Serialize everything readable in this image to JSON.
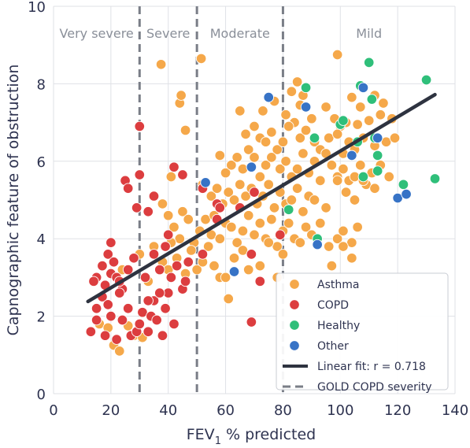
{
  "chart_data": {
    "type": "scatter",
    "xlabel": "FEV",
    "xlabel_sub": "1",
    "xlabel_rest": " % predicted",
    "ylabel": "Capnographic feature of obstruction",
    "xlim": [
      0,
      140
    ],
    "ylim": [
      0,
      10
    ],
    "xticks": [
      "0",
      "20",
      "40",
      "60",
      "80",
      "100",
      "120",
      "140"
    ],
    "yticks": [
      "0",
      "2",
      "4",
      "6",
      "8",
      "10"
    ],
    "grid": true,
    "legend_position": "bottom-right",
    "regions": [
      {
        "label": "Very severe",
        "x": 15
      },
      {
        "label": "Severe",
        "x": 40
      },
      {
        "label": "Moderate",
        "x": 65
      },
      {
        "label": "Mild",
        "x": 110
      }
    ],
    "severity_lines": [
      30,
      50,
      80
    ],
    "fit": {
      "label": "Linear fit: r = 0.718",
      "x": [
        12,
        133
      ],
      "y": [
        2.38,
        7.72
      ],
      "color": "#2e3340"
    },
    "severity_label": "GOLD COPD severity",
    "series": [
      {
        "name": "Asthma",
        "color": "#f5a84a",
        "points": [
          [
            37.5,
            8.5
          ],
          [
            51.5,
            8.65
          ],
          [
            99,
            8.75
          ],
          [
            44,
            7.5
          ],
          [
            44.5,
            7.7
          ],
          [
            46,
            6.8
          ],
          [
            85,
            8.05
          ],
          [
            86,
            7.45
          ],
          [
            83,
            7.8
          ],
          [
            87,
            7.7
          ],
          [
            104,
            7.65
          ],
          [
            107,
            7.4
          ],
          [
            112,
            7.7
          ],
          [
            115,
            7.5
          ],
          [
            65,
            7.3
          ],
          [
            73,
            7.3
          ],
          [
            77,
            7.55
          ],
          [
            81,
            7.2
          ],
          [
            84,
            7.0
          ],
          [
            90,
            7.1
          ],
          [
            95,
            7.4
          ],
          [
            98,
            7.1
          ],
          [
            100,
            6.9
          ],
          [
            102,
            7.0
          ],
          [
            106,
            6.95
          ],
          [
            110,
            7.05
          ],
          [
            114,
            7.2
          ],
          [
            118,
            7.1
          ],
          [
            67,
            6.7
          ],
          [
            70,
            6.9
          ],
          [
            72,
            6.6
          ],
          [
            74,
            6.5
          ],
          [
            76,
            6.75
          ],
          [
            78,
            6.3
          ],
          [
            80,
            6.5
          ],
          [
            82,
            6.9
          ],
          [
            86,
            6.6
          ],
          [
            88,
            6.8
          ],
          [
            91,
            6.5
          ],
          [
            93,
            6.3
          ],
          [
            96,
            6.6
          ],
          [
            99,
            6.7
          ],
          [
            101,
            6.2
          ],
          [
            103,
            6.5
          ],
          [
            105,
            6.3
          ],
          [
            108,
            6.6
          ],
          [
            112,
            6.4
          ],
          [
            116,
            6.5
          ],
          [
            119,
            6.6
          ],
          [
            58,
            6.15
          ],
          [
            60,
            5.7
          ],
          [
            62,
            5.9
          ],
          [
            64,
            6.1
          ],
          [
            66,
            5.8
          ],
          [
            68,
            6.3
          ],
          [
            70,
            6.1
          ],
          [
            72,
            5.6
          ],
          [
            74,
            5.9
          ],
          [
            76,
            6.1
          ],
          [
            79,
            5.8
          ],
          [
            81,
            6.0
          ],
          [
            83,
            5.6
          ],
          [
            85,
            5.8
          ],
          [
            87,
            6.2
          ],
          [
            89,
            5.7
          ],
          [
            91,
            6.0
          ],
          [
            93,
            5.5
          ],
          [
            95,
            6.2
          ],
          [
            97,
            5.9
          ],
          [
            99,
            5.6
          ],
          [
            101,
            5.8
          ],
          [
            103,
            5.5
          ],
          [
            105,
            5.6
          ],
          [
            107,
            5.9
          ],
          [
            109,
            5.4
          ],
          [
            111,
            5.7
          ],
          [
            114,
            5.9
          ],
          [
            117,
            5.6
          ],
          [
            52,
            5.4
          ],
          [
            55,
            5.1
          ],
          [
            57,
            5.3
          ],
          [
            59,
            4.9
          ],
          [
            61,
            5.2
          ],
          [
            63,
            5.0
          ],
          [
            65,
            5.4
          ],
          [
            67,
            5.1
          ],
          [
            69,
            5.3
          ],
          [
            71,
            4.9
          ],
          [
            73,
            5.1
          ],
          [
            75,
            5.4
          ],
          [
            77,
            4.8
          ],
          [
            79,
            5.2
          ],
          [
            81,
            4.9
          ],
          [
            83,
            5.0
          ],
          [
            85,
            5.3
          ],
          [
            87,
            4.7
          ],
          [
            89,
            5.1
          ],
          [
            91,
            5.0
          ],
          [
            95,
            4.8
          ],
          [
            99,
            5.5
          ],
          [
            102,
            5.2
          ],
          [
            105,
            5.0
          ],
          [
            108,
            5.5
          ],
          [
            112,
            5.3
          ],
          [
            38,
            4.9
          ],
          [
            40,
            4.6
          ],
          [
            41,
            5.6
          ],
          [
            42,
            4.3
          ],
          [
            44,
            4.0
          ],
          [
            45,
            4.7
          ],
          [
            47,
            4.5
          ],
          [
            49,
            3.9
          ],
          [
            51,
            4.2
          ],
          [
            53,
            4.5
          ],
          [
            55,
            4.1
          ],
          [
            56,
            4.6
          ],
          [
            58,
            4.0
          ],
          [
            60,
            4.4
          ],
          [
            62,
            4.3
          ],
          [
            64,
            3.9
          ],
          [
            66,
            4.2
          ],
          [
            68,
            4.6
          ],
          [
            70,
            4.1
          ],
          [
            72,
            4.4
          ],
          [
            74,
            4.0
          ],
          [
            76,
            4.5
          ],
          [
            78,
            3.8
          ],
          [
            80,
            4.2
          ],
          [
            82,
            4.4
          ],
          [
            84,
            4.0
          ],
          [
            86,
            3.9
          ],
          [
            88,
            4.3
          ],
          [
            90,
            4.1
          ],
          [
            93,
            4.4
          ],
          [
            96,
            3.8
          ],
          [
            99,
            4.0
          ],
          [
            101,
            4.2
          ],
          [
            104,
            3.9
          ],
          [
            106,
            4.3
          ],
          [
            30,
            3.6
          ],
          [
            33,
            2.9
          ],
          [
            35,
            3.8
          ],
          [
            38,
            3.4
          ],
          [
            40,
            3.2
          ],
          [
            41,
            3.9
          ],
          [
            43,
            3.5
          ],
          [
            46,
            3.1
          ],
          [
            48,
            3.7
          ],
          [
            50,
            3.2
          ],
          [
            52,
            3.4
          ],
          [
            54,
            3.8
          ],
          [
            56,
            3.3
          ],
          [
            58,
            3.0
          ],
          [
            60,
            3.0
          ],
          [
            61,
            2.45
          ],
          [
            63,
            3.5
          ],
          [
            66,
            3.7
          ],
          [
            68,
            3.2
          ],
          [
            72,
            3.3
          ],
          [
            75,
            3.9
          ],
          [
            78,
            3.0
          ],
          [
            80,
            3.6
          ],
          [
            97,
            3.3
          ],
          [
            101,
            3.8
          ],
          [
            104,
            3.5
          ],
          [
            24,
            3.2
          ],
          [
            16,
            1.8
          ],
          [
            19,
            1.7
          ],
          [
            21,
            1.25
          ],
          [
            23,
            1.1
          ],
          [
            26,
            1.75
          ],
          [
            28,
            1.5
          ],
          [
            31,
            1.45
          ]
        ]
      },
      {
        "name": "COPD",
        "color": "#dc3d3f",
        "points": [
          [
            30,
            6.9
          ],
          [
            25,
            5.5
          ],
          [
            26,
            5.3
          ],
          [
            30,
            5.65
          ],
          [
            29,
            4.8
          ],
          [
            33,
            4.7
          ],
          [
            35,
            5.1
          ],
          [
            42,
            5.85
          ],
          [
            45,
            5.65
          ],
          [
            52,
            5.3
          ],
          [
            57,
            4.9
          ],
          [
            58,
            4.8
          ],
          [
            65,
            4.8
          ],
          [
            70,
            5.2
          ],
          [
            69,
            3.6
          ],
          [
            79,
            4.1
          ],
          [
            72,
            2.9
          ],
          [
            69,
            1.85
          ],
          [
            57,
            4.5
          ],
          [
            52,
            3.6
          ],
          [
            20,
            3.9
          ],
          [
            19,
            3.6
          ],
          [
            17,
            3.3
          ],
          [
            15,
            3.0
          ],
          [
            14,
            2.9
          ],
          [
            18,
            2.8
          ],
          [
            20,
            3.1
          ],
          [
            21,
            3.4
          ],
          [
            22,
            3.0
          ],
          [
            24,
            2.7
          ],
          [
            26,
            3.2
          ],
          [
            28,
            3.5
          ],
          [
            23,
            2.6
          ],
          [
            17,
            2.5
          ],
          [
            15,
            2.2
          ],
          [
            19,
            2.3
          ],
          [
            13,
            1.6
          ],
          [
            15,
            1.9
          ],
          [
            18,
            1.5
          ],
          [
            20,
            2.0
          ],
          [
            22,
            1.4
          ],
          [
            24,
            1.9
          ],
          [
            26,
            2.2
          ],
          [
            27,
            1.5
          ],
          [
            29,
            1.6
          ],
          [
            30,
            1.8
          ],
          [
            31,
            2.1
          ],
          [
            33,
            1.6
          ],
          [
            34,
            2.0
          ],
          [
            35,
            2.4
          ],
          [
            36,
            1.9
          ],
          [
            38,
            1.5
          ],
          [
            39,
            2.2
          ],
          [
            40,
            2.6
          ],
          [
            42,
            1.8
          ],
          [
            33,
            2.4
          ],
          [
            37,
            2.6
          ],
          [
            41,
            3.0
          ],
          [
            45,
            2.7
          ],
          [
            46,
            2.9
          ],
          [
            32,
            3.0
          ],
          [
            35,
            3.6
          ],
          [
            37,
            3.2
          ],
          [
            39,
            3.8
          ],
          [
            43,
            3.3
          ],
          [
            47,
            3.4
          ],
          [
            40,
            4.1
          ],
          [
            23,
            2.9
          ]
        ]
      },
      {
        "name": "Healthy",
        "color": "#2fbf7a",
        "points": [
          [
            110,
            8.55
          ],
          [
            130,
            8.1
          ],
          [
            88,
            7.9
          ],
          [
            107,
            7.95
          ],
          [
            111,
            7.6
          ],
          [
            100,
            6.95
          ],
          [
            101,
            7.05
          ],
          [
            106,
            6.5
          ],
          [
            112,
            6.6
          ],
          [
            113,
            6.15
          ],
          [
            113,
            5.75
          ],
          [
            108,
            5.6
          ],
          [
            133,
            5.55
          ],
          [
            122,
            5.4
          ],
          [
            91,
            6.6
          ],
          [
            82,
            4.75
          ],
          [
            92,
            4.0
          ]
        ]
      },
      {
        "name": "Other",
        "color": "#3773c6",
        "points": [
          [
            75,
            7.65
          ],
          [
            88,
            7.4
          ],
          [
            108,
            7.9
          ],
          [
            113,
            6.6
          ],
          [
            69,
            5.85
          ],
          [
            53,
            5.45
          ],
          [
            63,
            3.15
          ],
          [
            92,
            3.85
          ],
          [
            104,
            6.15
          ],
          [
            120,
            5.05
          ],
          [
            123,
            5.15
          ]
        ]
      }
    ]
  }
}
